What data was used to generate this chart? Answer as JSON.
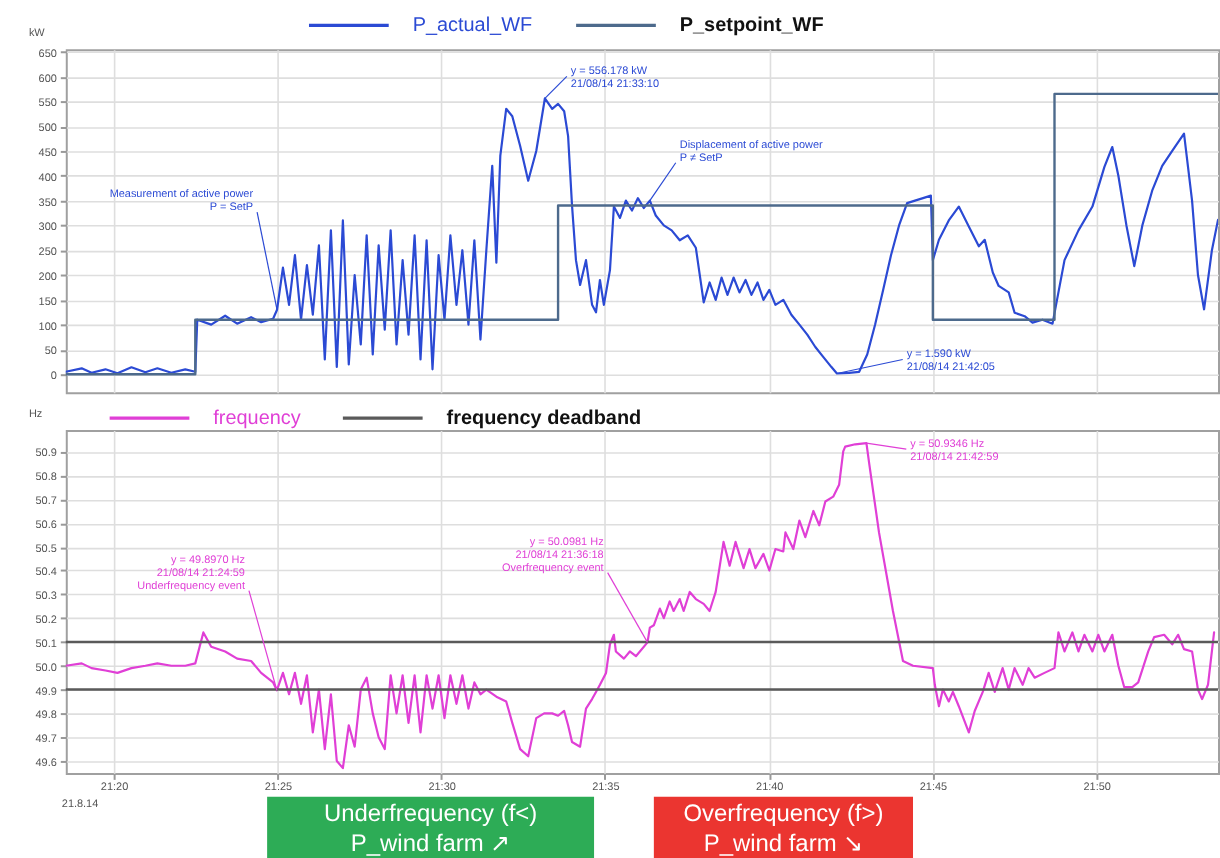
{
  "chart_data": [
    {
      "type": "line",
      "ylabel": "kW",
      "legend": "top",
      "grid": true,
      "tick_labels": "y",
      "xlim": [
        21.309,
        21.8953
      ],
      "xticks": [
        {
          "value": 21.3333,
          "label": null
        },
        {
          "value": 21.4167,
          "label": null
        },
        {
          "value": 21.5,
          "label": null
        },
        {
          "value": 21.5833,
          "label": null
        },
        {
          "value": 21.6667,
          "label": null
        },
        {
          "value": 21.75,
          "label": null
        },
        {
          "value": 21.8333,
          "label": null
        }
      ],
      "ylim": [
        -36,
        655
      ],
      "yticks": [
        0,
        50,
        100,
        150,
        200,
        250,
        300,
        350,
        400,
        450,
        500,
        550,
        600,
        650
      ],
      "series": [
        {
          "name": "P_actual_WF",
          "color": "#2b4ad4",
          "x": [
            21.309,
            21.3171,
            21.3221,
            21.3292,
            21.3353,
            21.3424,
            21.3495,
            21.3556,
            21.3627,
            21.3698,
            21.3749,
            21.3759,
            21.383,
            21.3901,
            21.3962,
            21.4033,
            21.4084,
            21.4145,
            21.4165,
            21.4195,
            21.4226,
            21.4256,
            21.4287,
            21.4317,
            21.4347,
            21.4378,
            21.4408,
            21.4439,
            21.4469,
            21.45,
            21.453,
            21.456,
            21.4591,
            21.4621,
            21.4652,
            21.4682,
            21.4713,
            21.4743,
            21.4773,
            21.4804,
            21.4834,
            21.4865,
            21.4895,
            21.4926,
            21.4956,
            21.4987,
            21.5017,
            21.5047,
            21.5078,
            21.5108,
            21.5139,
            21.5169,
            21.52,
            21.523,
            21.526,
            21.5281,
            21.5301,
            21.5331,
            21.5362,
            21.5402,
            21.5443,
            21.5484,
            21.5528,
            21.5565,
            21.5595,
            21.5626,
            21.5646,
            21.5666,
            21.5686,
            21.5707,
            21.5737,
            21.5768,
            21.5788,
            21.5808,
            21.5828,
            21.5859,
            21.5879,
            21.591,
            21.594,
            21.5971,
            21.6001,
            21.6031,
            21.6062,
            21.6092,
            21.6133,
            21.6173,
            21.6214,
            21.6255,
            21.6296,
            21.6336,
            21.6366,
            21.6397,
            21.6427,
            21.6457,
            21.6488,
            21.6518,
            21.6549,
            21.6579,
            21.661,
            21.664,
            21.667,
            21.6701,
            21.6741,
            21.6782,
            21.6823,
            21.6863,
            21.6904,
            21.6944,
            21.6985,
            21.7014,
            21.7076,
            21.7127,
            21.7168,
            21.7208,
            21.7249,
            21.7289,
            21.733,
            21.7371,
            21.7411,
            21.7452,
            21.7492,
            21.7502,
            21.7533,
            21.7583,
            21.7634,
            21.7685,
            21.7736,
            21.7766,
            21.7807,
            21.7837,
            21.7888,
            21.7918,
            21.7969,
            21.8009,
            21.806,
            21.8111,
            21.8172,
            21.8243,
            21.8314,
            21.8375,
            21.8415,
            21.8446,
            21.8487,
            21.8527,
            21.8568,
            21.8618,
            21.8669,
            21.872,
            21.878,
            21.8821,
            21.8851,
            21.8882,
            21.8922,
            21.8953
          ],
          "values": [
            5,
            12,
            3,
            10,
            2,
            14,
            4,
            12,
            3,
            10,
            5,
            110,
            100,
            118,
            102,
            115,
            105,
            112,
            130,
            215,
            140,
            240,
            110,
            220,
            120,
            260,
            30,
            290,
            15,
            310,
            20,
            200,
            60,
            280,
            40,
            260,
            90,
            290,
            60,
            230,
            80,
            280,
            30,
            270,
            10,
            240,
            110,
            280,
            140,
            250,
            100,
            270,
            70,
            250,
            420,
            225,
            440,
            535,
            520,
            460,
            390,
            450,
            556.178,
            535,
            545,
            530,
            480,
            340,
            230,
            180,
            230,
            140,
            125,
            190,
            140,
            210,
            338,
            315,
            350,
            330,
            355,
            335,
            350,
            320,
            300,
            290,
            270,
            280,
            255,
            145,
            185,
            150,
            195,
            160,
            195,
            165,
            190,
            160,
            185,
            150,
            170,
            140,
            150,
            120,
            100,
            80,
            55,
            35,
            15,
            1.59,
            3,
            5,
            40,
            100,
            170,
            240,
            300,
            345,
            350,
            355,
            360,
            230,
            271,
            310,
            338,
            298,
            258,
            271,
            205,
            178,
            165,
            124,
            117,
            104,
            110,
            102,
            230,
            290,
            338,
            418,
            458,
            400,
            300,
            218,
            300,
            370,
            420,
            450,
            485,
            350,
            200,
            131,
            250,
            311
          ]
        },
        {
          "name": "P_setpoint_WF",
          "type": "step",
          "color": "#4d6a8c",
          "x": [
            21.309,
            21.3749,
            21.5595,
            21.7502,
            21.8121,
            21.8953
          ],
          "values": [
            0,
            110,
            340,
            110,
            565,
            565
          ]
        }
      ],
      "annotations": [
        {
          "text": "Measurement of active power\nP = SetP",
          "x": 21.4165,
          "y": 130
        },
        {
          "text": "y = 556.178 kW\n21/08/14 21:33:10",
          "x": 21.5528,
          "y": 556.178
        },
        {
          "text": "Displacement of active power\nP ≠ SetP",
          "x": 21.6062,
          "y": 350
        },
        {
          "text": "y = 1.590 kW\n21/08/14 21:42:05",
          "x": 21.7014,
          "y": 1.59
        }
      ]
    },
    {
      "type": "line",
      "ylabel": "Hz",
      "legend": "top",
      "grid": true,
      "xlim": [
        21.309,
        21.8953
      ],
      "xticks": [
        {
          "value": 21.3333,
          "label": "21:20"
        },
        {
          "value": 21.4167,
          "label": "21:25"
        },
        {
          "value": 21.5,
          "label": "21:30"
        },
        {
          "value": 21.5833,
          "label": "21:35"
        },
        {
          "value": 21.6667,
          "label": "21:40"
        },
        {
          "value": 21.75,
          "label": "21:45"
        },
        {
          "value": 21.8333,
          "label": "21:50"
        }
      ],
      "ylim": [
        49.55,
        50.99
      ],
      "yticks": [
        49.6,
        49.7,
        49.8,
        49.9,
        {
          "value": 50,
          "label": "50.0"
        },
        50.1,
        50.2,
        50.3,
        50.4,
        50.5,
        50.6,
        50.7,
        50.8,
        50.9
      ],
      "series": [
        {
          "name": "frequency",
          "color": "#e03fd6",
          "x": [
            21.309,
            21.3171,
            21.3221,
            21.3292,
            21.3353,
            21.3424,
            21.3495,
            21.3556,
            21.3627,
            21.3698,
            21.3749,
            21.379,
            21.383,
            21.3901,
            21.3962,
            21.4033,
            21.4084,
            21.4145,
            21.4164,
            21.4195,
            21.4226,
            21.4256,
            21.4287,
            21.4317,
            21.4347,
            21.4378,
            21.4408,
            21.4439,
            21.4469,
            21.45,
            21.453,
            21.456,
            21.4591,
            21.4621,
            21.4652,
            21.4682,
            21.4713,
            21.4743,
            21.4773,
            21.4804,
            21.4834,
            21.4865,
            21.4895,
            21.4926,
            21.4956,
            21.4987,
            21.5017,
            21.5047,
            21.5078,
            21.5108,
            21.5139,
            21.5169,
            21.52,
            21.523,
            21.5281,
            21.5331,
            21.5362,
            21.5402,
            21.5443,
            21.5484,
            21.5524,
            21.5565,
            21.5595,
            21.5626,
            21.5646,
            21.5666,
            21.5707,
            21.5737,
            21.5768,
            21.5788,
            21.5808,
            21.5839,
            21.5859,
            21.5879,
            21.5889,
            21.593,
            21.596,
            21.5991,
            21.605,
            21.6062,
            21.6082,
            21.6113,
            21.6133,
            21.6163,
            21.6183,
            21.6214,
            21.6234,
            21.6265,
            21.6296,
            21.6336,
            21.6366,
            21.6397,
            21.6437,
            21.6468,
            21.6498,
            21.6539,
            21.6569,
            21.6599,
            21.664,
            21.667,
            21.6701,
            21.6741,
            21.6752,
            21.6792,
            21.6823,
            21.6853,
            21.6894,
            21.6924,
            21.6955,
            21.6995,
            21.7025,
            21.7046,
            21.7056,
            21.7107,
            21.7164,
            21.7178,
            21.7228,
            21.7299,
            21.735,
            21.7401,
            21.7502,
            21.7512,
            21.7533,
            21.7553,
            21.7583,
            21.7604,
            21.7634,
            21.7685,
            21.7715,
            21.7756,
            21.7786,
            21.7817,
            21.7857,
            21.7888,
            21.7918,
            21.7959,
            21.7989,
            21.802,
            21.807,
            21.8121,
            21.8141,
            21.8172,
            21.8212,
            21.8243,
            21.8273,
            21.8314,
            21.8344,
            21.8375,
            21.8415,
            21.8446,
            21.8476,
            21.8517,
            21.8547,
            21.8598,
            21.8628,
            21.8679,
            21.872,
            21.875,
            21.878,
            21.8821,
            21.8851,
            21.8872,
            21.8902,
            21.8933
          ],
          "values": [
            50.0,
            50.01,
            49.99,
            49.98,
            49.97,
            49.99,
            50.0,
            50.01,
            50.0,
            50.0,
            50.01,
            50.14,
            50.08,
            50.06,
            50.03,
            50.02,
            49.97,
            49.93,
            49.897,
            49.97,
            49.88,
            49.97,
            49.84,
            49.96,
            49.72,
            49.9,
            49.65,
            49.88,
            49.6,
            49.57,
            49.75,
            49.66,
            49.9,
            49.95,
            49.8,
            49.7,
            49.65,
            49.96,
            49.8,
            49.96,
            49.76,
            49.96,
            49.72,
            49.96,
            49.82,
            49.96,
            49.78,
            49.96,
            49.84,
            49.96,
            49.82,
            49.93,
            49.88,
            49.9,
            49.87,
            49.85,
            49.76,
            49.65,
            49.62,
            49.78,
            49.8,
            49.8,
            49.79,
            49.81,
            49.75,
            49.68,
            49.66,
            49.82,
            49.86,
            49.89,
            49.92,
            49.97,
            50.09,
            50.13,
            50.06,
            50.03,
            50.06,
            50.04,
            50.0981,
            50.16,
            50.17,
            50.24,
            50.2,
            50.27,
            50.23,
            50.28,
            50.23,
            50.31,
            50.28,
            50.26,
            50.23,
            50.31,
            50.52,
            50.42,
            50.52,
            50.41,
            50.49,
            50.41,
            50.47,
            50.4,
            50.49,
            50.48,
            50.56,
            50.49,
            50.61,
            50.54,
            50.65,
            50.59,
            50.69,
            50.71,
            50.76,
            50.9,
            50.92,
            50.93,
            50.9346,
            50.85,
            50.56,
            50.23,
            50.02,
            50.0,
            49.99,
            49.92,
            49.83,
            49.9,
            49.85,
            49.89,
            49.83,
            49.72,
            49.81,
            49.89,
            49.97,
            49.89,
            49.99,
            49.9,
            49.99,
            49.92,
            49.99,
            49.95,
            49.97,
            49.99,
            50.14,
            50.06,
            50.14,
            50.06,
            50.13,
            50.06,
            50.13,
            50.06,
            50.13,
            50.0,
            49.91,
            49.91,
            49.93,
            50.06,
            50.12,
            50.13,
            50.09,
            50.13,
            50.07,
            50.06,
            49.9,
            49.86,
            49.92,
            50.14
          ]
        },
        {
          "name": "frequency deadband",
          "color": "#5a5a5a",
          "x": [
            21.309,
            21.8953
          ],
          "values": [
            50.1,
            50.1
          ]
        },
        {
          "color": "#5a5a5a",
          "x": [
            21.309,
            21.8953
          ],
          "values": [
            49.9,
            49.9
          ]
        }
      ],
      "annotations": [
        {
          "text": "y = 49.8970 Hz\n21/08/14 21:24:59\nUnderfrequency event",
          "x": 21.4164,
          "y": 49.897
        },
        {
          "text": "y = 50.0981 Hz\n21/08/14 21:36:18\nOverfrequency event",
          "x": 21.605,
          "y": 50.0981
        },
        {
          "text": "y = 50.9346 Hz\n21/08/14 21:42:59",
          "x": 21.7164,
          "y": 50.9346
        },
        "21.8.14",
        "Underfrequency (f<)\nP_wind farm ↗",
        "Overfrequency (f>)\nP_wind farm ↘"
      ]
    }
  ]
}
